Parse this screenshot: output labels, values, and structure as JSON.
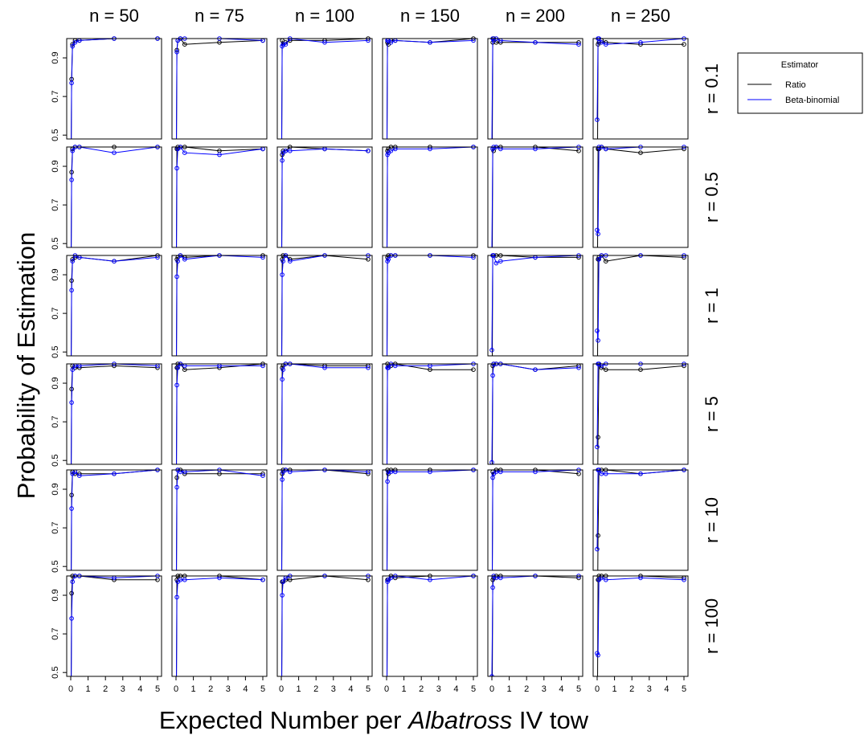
{
  "chart_data": {
    "type": "line",
    "layout": "facet-grid",
    "xlabel": {
      "prefix": "Expected Number per ",
      "italic": "Albatross",
      "suffix": " IV tow"
    },
    "ylabel": "Probability of Estimation",
    "col_labels": [
      "n = 50",
      "n = 75",
      "n = 100",
      "n = 150",
      "n = 200",
      "n = 250"
    ],
    "row_labels": [
      "r = 0.1",
      "r = 0.5",
      "r = 1",
      "r = 5",
      "r = 10",
      "r = 100"
    ],
    "x": [
      0,
      0.05,
      0.1,
      0.25,
      0.5,
      2.5,
      5
    ],
    "xlim": [
      0,
      5
    ],
    "ylim": [
      0.48,
      1.0
    ],
    "x_ticks": [
      "0",
      "1",
      "2",
      "3",
      "4",
      "5"
    ],
    "y_ticks": [
      "0.5",
      "0.7",
      "0.9"
    ],
    "y_tick_values": [
      0.5,
      0.7,
      0.9
    ],
    "grid": false,
    "legend": {
      "title": "Estimator",
      "placement": "right",
      "entries": [
        {
          "name": "Ratio",
          "color": "#000000"
        },
        {
          "name": "Beta-binomial",
          "color": "#0000ff"
        }
      ]
    },
    "series_colors": {
      "ratio": "#000000",
      "betabinomial": "#0000ff"
    },
    "panels": [
      [
        {
          "ratio": [
            0.0,
            0.79,
            0.97,
            0.99,
            0.99,
            1.0,
            1.0
          ],
          "betabinomial": [
            0.0,
            0.77,
            0.96,
            0.98,
            0.99,
            1.0,
            1.0
          ]
        },
        {
          "ratio": [
            0.0,
            0.94,
            0.99,
            1.0,
            0.97,
            0.98,
            0.99
          ],
          "betabinomial": [
            0.0,
            0.93,
            0.99,
            1.0,
            1.0,
            1.0,
            0.99
          ]
        },
        {
          "ratio": [
            0.0,
            0.99,
            0.97,
            0.98,
            0.99,
            0.99,
            1.0
          ],
          "betabinomial": [
            0.0,
            0.96,
            0.97,
            0.97,
            1.0,
            0.98,
            0.99
          ]
        },
        {
          "ratio": [
            0.0,
            0.98,
            0.97,
            0.99,
            0.99,
            0.98,
            1.0
          ],
          "betabinomial": [
            0.0,
            0.99,
            0.99,
            0.98,
            0.99,
            0.98,
            0.99
          ]
        },
        {
          "ratio": [
            0.0,
            0.98,
            1.0,
            0.98,
            0.98,
            0.98,
            0.98
          ],
          "betabinomial": [
            0.46,
            1.0,
            0.99,
            1.0,
            0.99,
            0.98,
            0.97
          ]
        },
        {
          "ratio": [
            0.0,
            0.97,
            0.98,
            0.99,
            0.98,
            0.97,
            0.97
          ],
          "betabinomial": [
            0.58,
            1.0,
            1.0,
            0.98,
            0.97,
            0.98,
            1.0
          ]
        }
      ],
      [
        {
          "ratio": [
            0.0,
            0.87,
            0.99,
            1.0,
            1.0,
            1.0,
            1.0
          ],
          "betabinomial": [
            0.0,
            0.83,
            0.98,
            1.0,
            1.0,
            0.97,
            1.0
          ]
        },
        {
          "ratio": [
            0.0,
            0.99,
            1.0,
            1.0,
            1.0,
            0.98,
            0.99
          ],
          "betabinomial": [
            0.0,
            0.89,
            0.99,
            1.0,
            0.97,
            0.96,
            0.99
          ]
        },
        {
          "ratio": [
            0.0,
            0.96,
            0.98,
            0.98,
            1.0,
            0.99,
            0.98
          ],
          "betabinomial": [
            0.0,
            0.93,
            0.97,
            0.98,
            0.98,
            0.99,
            0.98
          ]
        },
        {
          "ratio": [
            0.0,
            0.98,
            0.99,
            1.0,
            1.0,
            1.0,
            1.0
          ],
          "betabinomial": [
            0.0,
            0.96,
            0.97,
            0.98,
            0.99,
            0.99,
            1.0
          ]
        },
        {
          "ratio": [
            0.0,
            0.99,
            0.98,
            1.0,
            1.0,
            1.0,
            0.98
          ],
          "betabinomial": [
            0.47,
            0.99,
            1.0,
            1.0,
            0.99,
            0.99,
            1.0
          ]
        },
        {
          "ratio": [
            0.0,
            0.99,
            0.99,
            1.0,
            0.99,
            0.97,
            0.99
          ],
          "betabinomial": [
            0.57,
            0.55,
            1.0,
            1.0,
            0.99,
            1.0,
            1.0
          ]
        }
      ],
      [
        {
          "ratio": [
            0.0,
            0.87,
            0.98,
            0.99,
            0.99,
            0.97,
            1.0
          ],
          "betabinomial": [
            0.0,
            0.82,
            0.97,
            1.0,
            0.99,
            0.97,
            0.99
          ]
        },
        {
          "ratio": [
            0.0,
            0.98,
            0.99,
            1.0,
            0.99,
            1.0,
            1.0
          ],
          "betabinomial": [
            0.0,
            0.89,
            0.97,
            1.0,
            0.98,
            1.0,
            0.99
          ]
        },
        {
          "ratio": [
            0.0,
            0.98,
            1.0,
            1.0,
            0.98,
            1.0,
            0.98
          ],
          "betabinomial": [
            0.0,
            0.9,
            0.97,
            1.0,
            0.97,
            1.0,
            1.0
          ]
        },
        {
          "ratio": [
            0.0,
            0.99,
            1.0,
            1.0,
            1.0,
            1.0,
            1.0
          ],
          "betabinomial": [
            0.0,
            0.97,
            0.98,
            1.0,
            1.0,
            1.0,
            0.99
          ]
        },
        {
          "ratio": [
            0.0,
            1.0,
            1.0,
            1.0,
            1.0,
            0.99,
            0.99
          ],
          "betabinomial": [
            0.51,
            1.0,
            1.0,
            0.96,
            0.97,
            0.99,
            1.0
          ]
        },
        {
          "ratio": [
            0.0,
            0.98,
            0.99,
            1.0,
            0.97,
            1.0,
            0.99
          ],
          "betabinomial": [
            0.61,
            0.56,
            0.98,
            1.0,
            1.0,
            1.0,
            1.0
          ]
        }
      ],
      [
        {
          "ratio": [
            0.0,
            0.87,
            0.99,
            0.98,
            0.98,
            0.99,
            0.98
          ],
          "betabinomial": [
            0.0,
            0.8,
            0.97,
            0.99,
            0.99,
            1.0,
            0.99
          ]
        },
        {
          "ratio": [
            0.0,
            0.98,
            1.0,
            1.0,
            0.97,
            0.98,
            1.0
          ],
          "betabinomial": [
            0.0,
            0.89,
            0.98,
            1.0,
            0.99,
            0.99,
            0.99
          ]
        },
        {
          "ratio": [
            0.0,
            0.98,
            0.99,
            1.0,
            1.0,
            0.99,
            0.99
          ],
          "betabinomial": [
            0.0,
            0.92,
            0.97,
            1.0,
            1.0,
            0.98,
            0.98
          ]
        },
        {
          "ratio": [
            0.0,
            1.0,
            0.98,
            0.99,
            1.0,
            0.97,
            0.97
          ],
          "betabinomial": [
            0.0,
            0.98,
            0.98,
            1.0,
            0.99,
            0.99,
            1.0
          ]
        },
        {
          "ratio": [
            0.0,
            0.99,
            1.0,
            1.0,
            1.0,
            0.97,
            0.99
          ],
          "betabinomial": [
            0.49,
            0.94,
            1.0,
            1.0,
            1.0,
            0.97,
            0.98
          ]
        },
        {
          "ratio": [
            0.0,
            0.62,
            1.0,
            0.98,
            0.97,
            0.97,
            0.99
          ],
          "betabinomial": [
            0.57,
            1.0,
            1.0,
            0.99,
            1.0,
            1.0,
            1.0
          ]
        }
      ],
      [
        {
          "ratio": [
            0.0,
            0.87,
            0.99,
            0.98,
            0.98,
            0.98,
            1.0
          ],
          "betabinomial": [
            0.0,
            0.8,
            0.98,
            0.99,
            0.97,
            0.98,
            1.0
          ]
        },
        {
          "ratio": [
            0.0,
            0.96,
            1.0,
            1.0,
            0.98,
            0.98,
            0.98
          ],
          "betabinomial": [
            0.0,
            0.91,
            1.0,
            0.99,
            0.99,
            1.0,
            0.97
          ]
        },
        {
          "ratio": [
            0.0,
            0.98,
            1.0,
            1.0,
            1.0,
            1.0,
            0.98
          ],
          "betabinomial": [
            0.0,
            0.95,
            0.99,
            1.0,
            0.99,
            1.0,
            0.99
          ]
        },
        {
          "ratio": [
            0.0,
            1.0,
            0.98,
            1.0,
            1.0,
            1.0,
            1.0
          ],
          "betabinomial": [
            0.0,
            0.94,
            0.99,
            0.99,
            0.99,
            0.99,
            1.0
          ]
        },
        {
          "ratio": [
            0.0,
            0.99,
            0.98,
            1.0,
            1.0,
            1.0,
            0.98
          ],
          "betabinomial": [
            0.0,
            0.96,
            0.98,
            0.99,
            0.99,
            0.99,
            1.0
          ]
        },
        {
          "ratio": [
            0.0,
            0.66,
            1.0,
            1.0,
            1.0,
            0.98,
            1.0
          ],
          "betabinomial": [
            0.59,
            1.0,
            1.0,
            0.98,
            0.98,
            0.98,
            1.0
          ]
        }
      ],
      [
        {
          "ratio": [
            0.0,
            0.91,
            1.0,
            1.0,
            1.0,
            0.98,
            0.98
          ],
          "betabinomial": [
            0.0,
            0.78,
            0.97,
            1.0,
            1.0,
            0.99,
            1.0
          ]
        },
        {
          "ratio": [
            0.0,
            0.98,
            1.0,
            1.0,
            1.0,
            1.0,
            0.98
          ],
          "betabinomial": [
            0.0,
            0.89,
            0.97,
            0.98,
            0.98,
            0.99,
            0.98
          ]
        },
        {
          "ratio": [
            0.0,
            0.97,
            0.97,
            0.98,
            0.98,
            1.0,
            0.98
          ],
          "betabinomial": [
            0.0,
            0.9,
            0.97,
            0.99,
            1.0,
            1.0,
            1.0
          ]
        },
        {
          "ratio": [
            0.0,
            0.98,
            0.98,
            1.0,
            0.99,
            1.0,
            1.0
          ],
          "betabinomial": [
            0.0,
            0.97,
            0.98,
            0.99,
            1.0,
            0.98,
            1.0
          ]
        },
        {
          "ratio": [
            0.0,
            0.98,
            0.99,
            1.0,
            1.0,
            1.0,
            0.99
          ],
          "betabinomial": [
            0.48,
            0.94,
            1.0,
            0.99,
            0.99,
            1.0,
            1.0
          ]
        },
        {
          "ratio": [
            0.0,
            0.98,
            1.0,
            1.0,
            1.0,
            1.0,
            0.99
          ],
          "betabinomial": [
            0.6,
            0.59,
            0.98,
            0.99,
            0.98,
            0.99,
            0.98
          ]
        }
      ]
    ]
  }
}
